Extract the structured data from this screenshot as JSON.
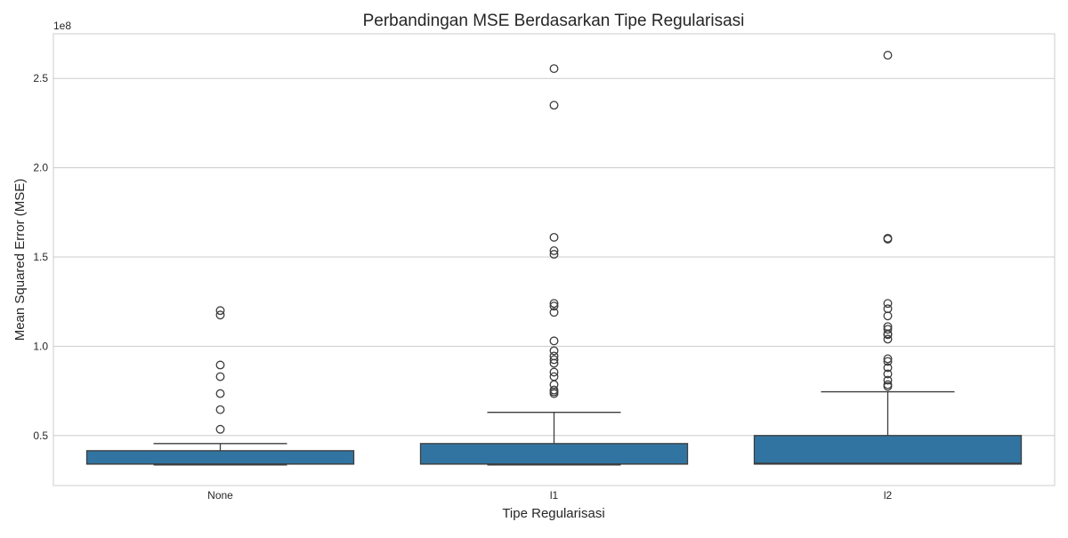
{
  "chart_data": {
    "type": "box",
    "title": "Perbandingan MSE Berdasarkan Tipe Regularisasi",
    "xlabel": "Tipe Regularisasi",
    "ylabel": "Mean Squared Error (MSE)",
    "y_multiplier_label": "1e8",
    "ylim": [
      0.22,
      2.75
    ],
    "yticks": [
      0.5,
      1.0,
      1.5,
      2.0,
      2.5
    ],
    "ytick_labels": [
      "0.5",
      "1.0",
      "1.5",
      "2.0",
      "2.5"
    ],
    "grid": true,
    "box_color": "#3274a1",
    "categories": [
      "None",
      "l1",
      "l2"
    ],
    "boxes": [
      {
        "category": "None",
        "whisker_low": 0.335,
        "q1": 0.34,
        "median": 0.34,
        "q3": 0.415,
        "whisker_high": 0.455,
        "fliers": [
          1.2,
          1.175,
          0.895,
          0.83,
          0.735,
          0.645,
          0.535
        ]
      },
      {
        "category": "l1",
        "whisker_low": 0.335,
        "q1": 0.34,
        "median": 0.34,
        "q3": 0.455,
        "whisker_high": 0.63,
        "fliers": [
          2.555,
          2.35,
          1.61,
          1.535,
          1.515,
          1.24,
          1.225,
          1.19,
          1.03,
          0.975,
          0.945,
          0.925,
          0.905,
          0.855,
          0.83,
          0.785,
          0.755,
          0.745,
          0.735
        ]
      },
      {
        "category": "l2",
        "whisker_low": 0.34,
        "q1": 0.34,
        "median": 0.345,
        "q3": 0.5,
        "whisker_high": 0.745,
        "fliers": [
          2.63,
          1.605,
          1.6,
          1.24,
          1.21,
          1.17,
          1.11,
          1.095,
          1.07,
          1.065,
          1.04,
          0.93,
          0.915,
          0.88,
          0.845,
          0.81,
          0.785,
          0.775
        ]
      }
    ]
  }
}
